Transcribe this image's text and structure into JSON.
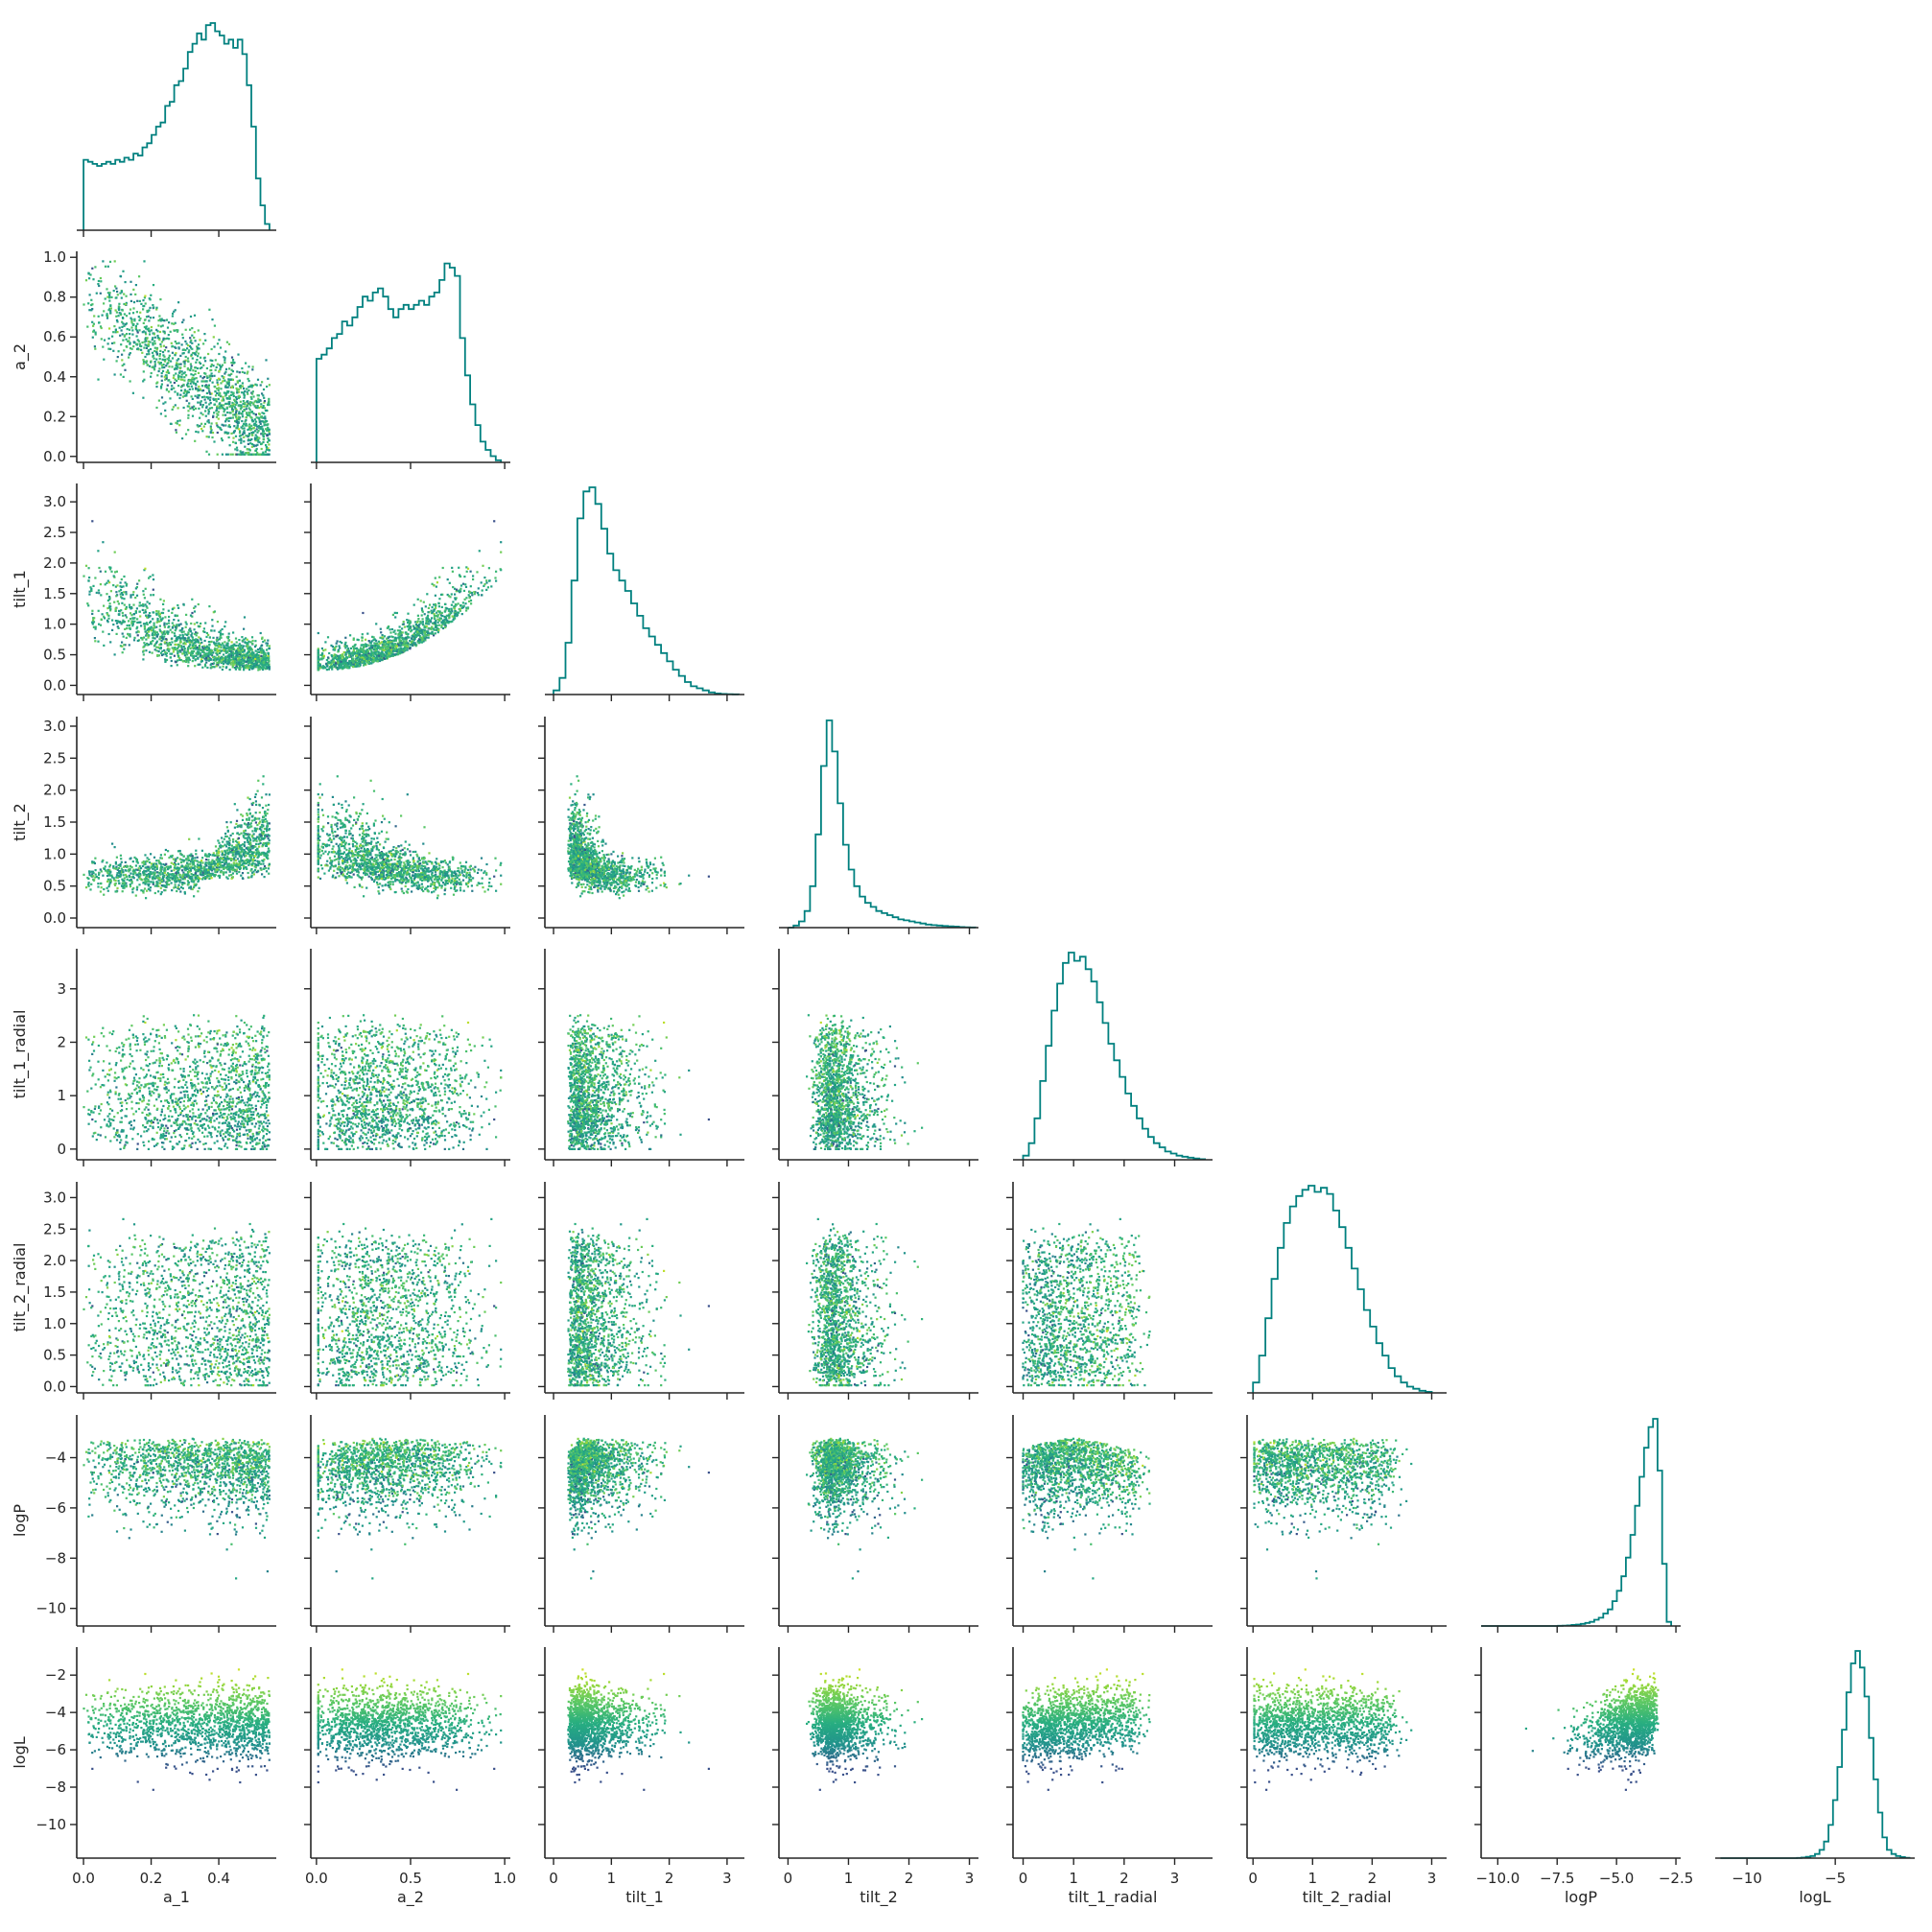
{
  "chart_data": {
    "type": "scatter",
    "layout": "corner-pairplot",
    "variables": [
      "a_1",
      "a_2",
      "tilt_1",
      "tilt_2",
      "tilt_1_radial",
      "tilt_2_radial",
      "logP",
      "logL"
    ],
    "axis_labels": [
      "a_1",
      "a_2",
      "tilt_1",
      "tilt_2",
      "tilt_1_radial",
      "tilt_2_radial",
      "logP",
      "logL"
    ],
    "ranges": [
      [
        -0.02,
        0.57
      ],
      [
        -0.03,
        1.03
      ],
      [
        -0.15,
        3.3
      ],
      [
        -0.15,
        3.15
      ],
      [
        -0.2,
        3.75
      ],
      [
        -0.1,
        3.25
      ],
      [
        -10.7,
        -2.3
      ],
      [
        -11.8,
        -0.5
      ]
    ],
    "ticks": [
      {
        "values": [
          0.0,
          0.2,
          0.4
        ],
        "labels": [
          "0.0",
          "0.2",
          "0.4"
        ]
      },
      {
        "values": [
          0.0,
          0.2,
          0.4,
          0.6,
          0.8,
          1.0
        ],
        "labels": [
          "0.0",
          "0.2",
          "0.4",
          "0.6",
          "0.8",
          "1.0"
        ],
        "x_values": [
          0.0,
          0.5,
          1.0
        ],
        "x_labels": [
          "0.0",
          "0.5",
          "1.0"
        ]
      },
      {
        "values": [
          0.0,
          0.5,
          1.0,
          1.5,
          2.0,
          2.5,
          3.0
        ],
        "labels": [
          "0.0",
          "0.5",
          "1.0",
          "1.5",
          "2.0",
          "2.5",
          "3.0"
        ],
        "x_values": [
          0,
          1,
          2,
          3
        ],
        "x_labels": [
          "0",
          "1",
          "2",
          "3"
        ]
      },
      {
        "values": [
          0.0,
          0.5,
          1.0,
          1.5,
          2.0,
          2.5,
          3.0
        ],
        "labels": [
          "0.0",
          "0.5",
          "1.0",
          "1.5",
          "2.0",
          "2.5",
          "3.0"
        ],
        "x_values": [
          0,
          1,
          2,
          3
        ],
        "x_labels": [
          "0",
          "1",
          "2",
          "3"
        ]
      },
      {
        "values": [
          0,
          1,
          2,
          3
        ],
        "labels": [
          "0",
          "1",
          "2",
          "3"
        ]
      },
      {
        "values": [
          0.0,
          0.5,
          1.0,
          1.5,
          2.0,
          2.5,
          3.0
        ],
        "labels": [
          "0.0",
          "0.5",
          "1.0",
          "1.5",
          "2.0",
          "2.5",
          "3.0"
        ],
        "x_values": [
          0,
          1,
          2,
          3
        ],
        "x_labels": [
          "0",
          "1",
          "2",
          "3"
        ]
      },
      {
        "values": [
          -10,
          -8,
          -6,
          -4
        ],
        "labels": [
          "−10",
          "−8",
          "−6",
          "−4"
        ],
        "x_values": [
          -10.0,
          -7.5,
          -5.0,
          -2.5
        ],
        "x_labels": [
          "−10.0",
          "−7.5",
          "−5.0",
          "−2.5"
        ]
      },
      {
        "values": [
          -10,
          -8,
          -6,
          -4,
          -2
        ],
        "labels": [
          "−10",
          "−8",
          "−6",
          "−4",
          "−2"
        ],
        "x_values": [
          -10,
          -5
        ],
        "x_labels": [
          "−10",
          "−5"
        ]
      }
    ],
    "histograms": [
      {
        "variable": "a_1",
        "bins": [
          0.0,
          0.55
        ],
        "counts": [
          0.34,
          0.33,
          0.32,
          0.31,
          0.32,
          0.33,
          0.32,
          0.34,
          0.33,
          0.35,
          0.34,
          0.37,
          0.36,
          0.4,
          0.42,
          0.46,
          0.5,
          0.52,
          0.6,
          0.62,
          0.7,
          0.72,
          0.78,
          0.86,
          0.9,
          0.95,
          0.92,
          0.99,
          1.0,
          0.96,
          0.94,
          0.9,
          0.92,
          0.88,
          0.92,
          0.85,
          0.7,
          0.5,
          0.25,
          0.12,
          0.03
        ]
      },
      {
        "variable": "a_2",
        "bins": [
          0.0,
          0.98
        ],
        "counts": [
          0.5,
          0.52,
          0.55,
          0.6,
          0.62,
          0.68,
          0.66,
          0.7,
          0.75,
          0.8,
          0.78,
          0.82,
          0.84,
          0.8,
          0.74,
          0.7,
          0.74,
          0.76,
          0.74,
          0.76,
          0.78,
          0.76,
          0.8,
          0.82,
          0.88,
          0.96,
          0.94,
          0.9,
          0.6,
          0.42,
          0.28,
          0.18,
          0.1,
          0.06,
          0.03,
          0.01
        ]
      },
      {
        "variable": "tilt_1",
        "bins": [
          0.0,
          3.2
        ],
        "counts": [
          0.02,
          0.08,
          0.25,
          0.55,
          0.85,
          0.98,
          1.0,
          0.92,
          0.8,
          0.68,
          0.6,
          0.55,
          0.5,
          0.44,
          0.38,
          0.32,
          0.28,
          0.24,
          0.2,
          0.16,
          0.12,
          0.09,
          0.06,
          0.04,
          0.03,
          0.02,
          0.01,
          0.005,
          0.003,
          0.002,
          0.001
        ]
      },
      {
        "variable": "tilt_2",
        "bins": [
          0.0,
          3.1
        ],
        "counts": [
          0.0,
          0.01,
          0.03,
          0.08,
          0.2,
          0.45,
          0.78,
          1.0,
          0.85,
          0.6,
          0.4,
          0.28,
          0.2,
          0.15,
          0.12,
          0.1,
          0.08,
          0.07,
          0.06,
          0.05,
          0.04,
          0.035,
          0.03,
          0.025,
          0.02,
          0.015,
          0.012,
          0.01,
          0.008,
          0.006,
          0.005,
          0.003,
          0.002,
          0.001
        ]
      },
      {
        "variable": "tilt_1_radial",
        "bins": [
          0.0,
          3.6
        ],
        "counts": [
          0.02,
          0.08,
          0.2,
          0.38,
          0.55,
          0.72,
          0.85,
          0.95,
          1.0,
          0.96,
          0.98,
          0.92,
          0.86,
          0.76,
          0.66,
          0.56,
          0.48,
          0.4,
          0.32,
          0.26,
          0.2,
          0.15,
          0.11,
          0.08,
          0.06,
          0.04,
          0.03,
          0.02,
          0.015,
          0.01,
          0.006,
          0.003
        ]
      },
      {
        "variable": "tilt_2_radial",
        "bins": [
          0.0,
          3.0
        ],
        "counts": [
          0.05,
          0.18,
          0.36,
          0.55,
          0.7,
          0.82,
          0.9,
          0.95,
          0.98,
          1.0,
          0.97,
          0.99,
          0.96,
          0.88,
          0.8,
          0.7,
          0.6,
          0.5,
          0.4,
          0.32,
          0.24,
          0.18,
          0.12,
          0.08,
          0.05,
          0.03,
          0.02,
          0.01,
          0.005
        ]
      },
      {
        "variable": "logP",
        "bins": [
          -10.7,
          -2.7
        ],
        "counts": [
          0.0,
          0.0,
          0.0,
          0.0,
          0.0,
          0.0,
          0.0,
          0.0,
          0.0,
          0.0,
          0.0,
          0.0,
          0.0,
          0.0,
          0.0,
          0.0,
          0.0,
          0.001,
          0.002,
          0.003,
          0.005,
          0.007,
          0.01,
          0.015,
          0.02,
          0.03,
          0.04,
          0.06,
          0.08,
          0.12,
          0.17,
          0.24,
          0.33,
          0.44,
          0.58,
          0.72,
          0.86,
          0.96,
          1.0,
          0.75,
          0.3,
          0.02
        ]
      },
      {
        "variable": "logL",
        "bins": [
          -11.5,
          -0.8
        ],
        "counts": [
          0.0,
          0.0,
          0.0,
          0.0,
          0.0,
          0.0,
          0.0,
          0.0,
          0.0,
          0.0,
          0.0,
          0.0,
          0.0,
          0.0,
          0.0,
          0.0,
          0.0,
          0.001,
          0.003,
          0.006,
          0.01,
          0.02,
          0.04,
          0.08,
          0.16,
          0.28,
          0.44,
          0.62,
          0.8,
          0.94,
          1.0,
          0.92,
          0.78,
          0.58,
          0.38,
          0.22,
          0.1,
          0.04,
          0.02,
          0.01,
          0.005,
          0.002
        ]
      }
    ],
    "colors": {
      "histogram": "#00807f",
      "colormap": "viridis",
      "scatter_color_by": "logL",
      "colormap_stops": [
        "#3b528b",
        "#21908d",
        "#27ad81",
        "#5ec962",
        "#aadc32",
        "#fde725"
      ],
      "axes": "#262626",
      "background": "#ffffff"
    },
    "grid": false,
    "legend": "none"
  }
}
